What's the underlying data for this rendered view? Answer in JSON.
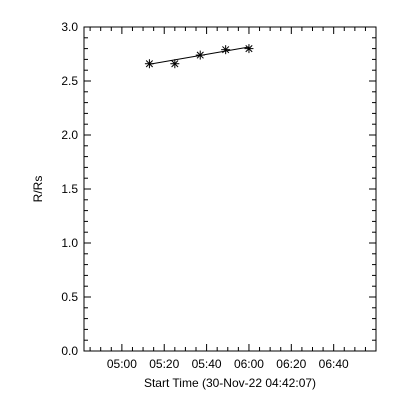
{
  "chart_data": {
    "type": "line",
    "title": "",
    "xlabel": "Start Time (30-Nov-22 04:42:07)",
    "ylabel": "R/Rs",
    "x_unit": "time",
    "x_ticks": [
      "05:00",
      "05:20",
      "05:40",
      "06:00",
      "06:20",
      "06:40"
    ],
    "xlim": [
      "04:42:07",
      "06:59:59"
    ],
    "ylim": [
      0,
      3
    ],
    "y_ticks": [
      "0.0",
      "0.5",
      "1.0",
      "1.5",
      "2.0",
      "2.5",
      "3.0"
    ],
    "grid": false,
    "legend": "none",
    "marker": "asterisk",
    "series": [
      {
        "points": [
          {
            "x": "05:13",
            "y": 2.66
          },
          {
            "x": "05:25",
            "y": 2.66
          },
          {
            "x": "05:37",
            "y": 2.74
          },
          {
            "x": "05:49",
            "y": 2.79
          },
          {
            "x": "06:00",
            "y": 2.8
          }
        ]
      }
    ],
    "fit_line": [
      {
        "x": "05:13",
        "y": 2.655
      },
      {
        "x": "06:00",
        "y": 2.815
      }
    ]
  }
}
